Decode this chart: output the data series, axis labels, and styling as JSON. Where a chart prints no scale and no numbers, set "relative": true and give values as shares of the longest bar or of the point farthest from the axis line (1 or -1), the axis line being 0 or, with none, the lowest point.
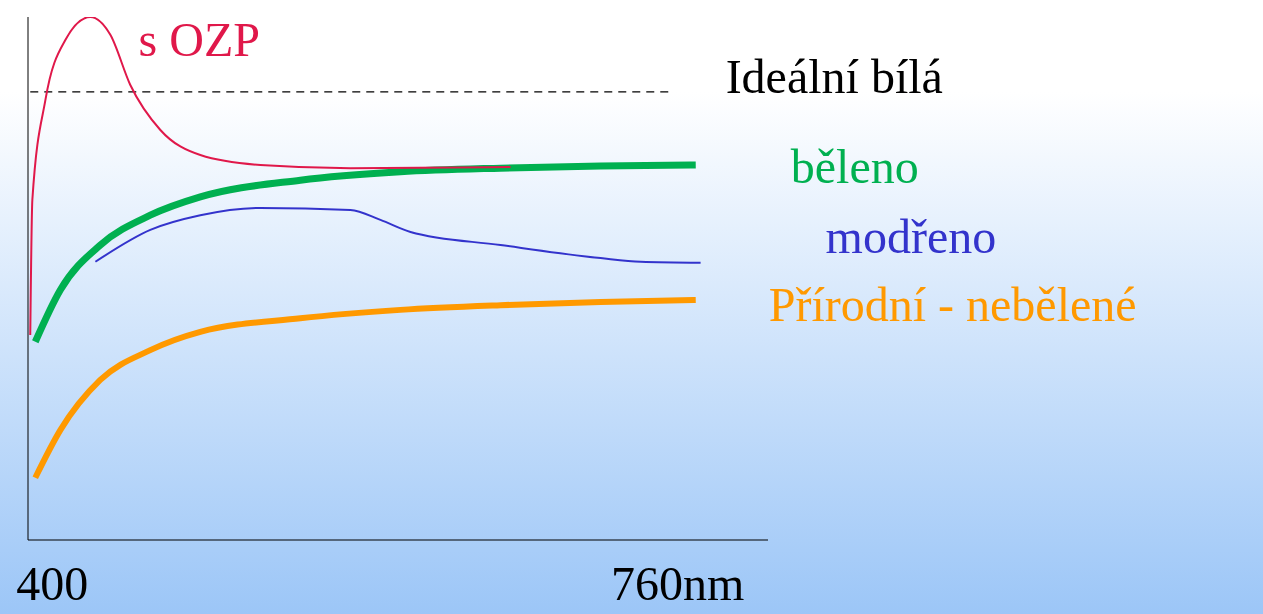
{
  "chart_data": {
    "type": "line",
    "relative": true,
    "marker": "none",
    "xlim": [
      386,
      812
    ],
    "xticks": [
      400,
      {
        "value": 760,
        "label": "760nm"
      }
    ],
    "series": [
      {
        "name": "s OZP",
        "color": "#e0184a",
        "x": [
          387.3,
          388.5,
          396,
          407.5,
          421.9,
          433.4,
          444.9,
          462.2,
          485.2,
          519.8,
          571.6,
          663.8
        ],
        "values": [
          0.392,
          0.65,
          0.841,
          0.956,
          1,
          0.966,
          0.87,
          0.784,
          0.736,
          0.717,
          0.711,
          0.713
        ]
      },
      {
        "name": "Ideální bílá",
        "color": "#000000",
        "line_style": "dashed",
        "x": [
          387.3,
          754.8
        ],
        "values": [
          0.857,
          0.857
        ]
      },
      {
        "name": "běleno",
        "color": "#00b050",
        "x": [
          390.2,
          404.6,
          427.6,
          456.4,
          485.2,
          542.8,
          600.4,
          658,
          715.6,
          770.4
        ],
        "values": [
          0.379,
          0.478,
          0.564,
          0.621,
          0.656,
          0.688,
          0.704,
          0.711,
          0.715,
          0.717
        ]
      },
      {
        "name": "modřeno",
        "color": "#3333cc",
        "x": [
          424.8,
          456.4,
          485.2,
          519.8,
          571.6,
          588.9,
          606.2,
          658,
          715.6,
          738.7,
          773.2
        ],
        "values": [
          0.532,
          0.593,
          0.621,
          0.635,
          0.631,
          0.612,
          0.589,
          0.564,
          0.539,
          0.532,
          0.53
        ]
      },
      {
        "name": "Přírodní - nebělené",
        "color": "#ff9900",
        "x": [
          390.2,
          404.6,
          427.6,
          456.4,
          485.2,
          542.8,
          600.4,
          658,
          715.6,
          770.4
        ],
        "values": [
          0.119,
          0.21,
          0.306,
          0.363,
          0.398,
          0.424,
          0.44,
          0.449,
          0.455,
          0.459
        ]
      }
    ]
  }
}
